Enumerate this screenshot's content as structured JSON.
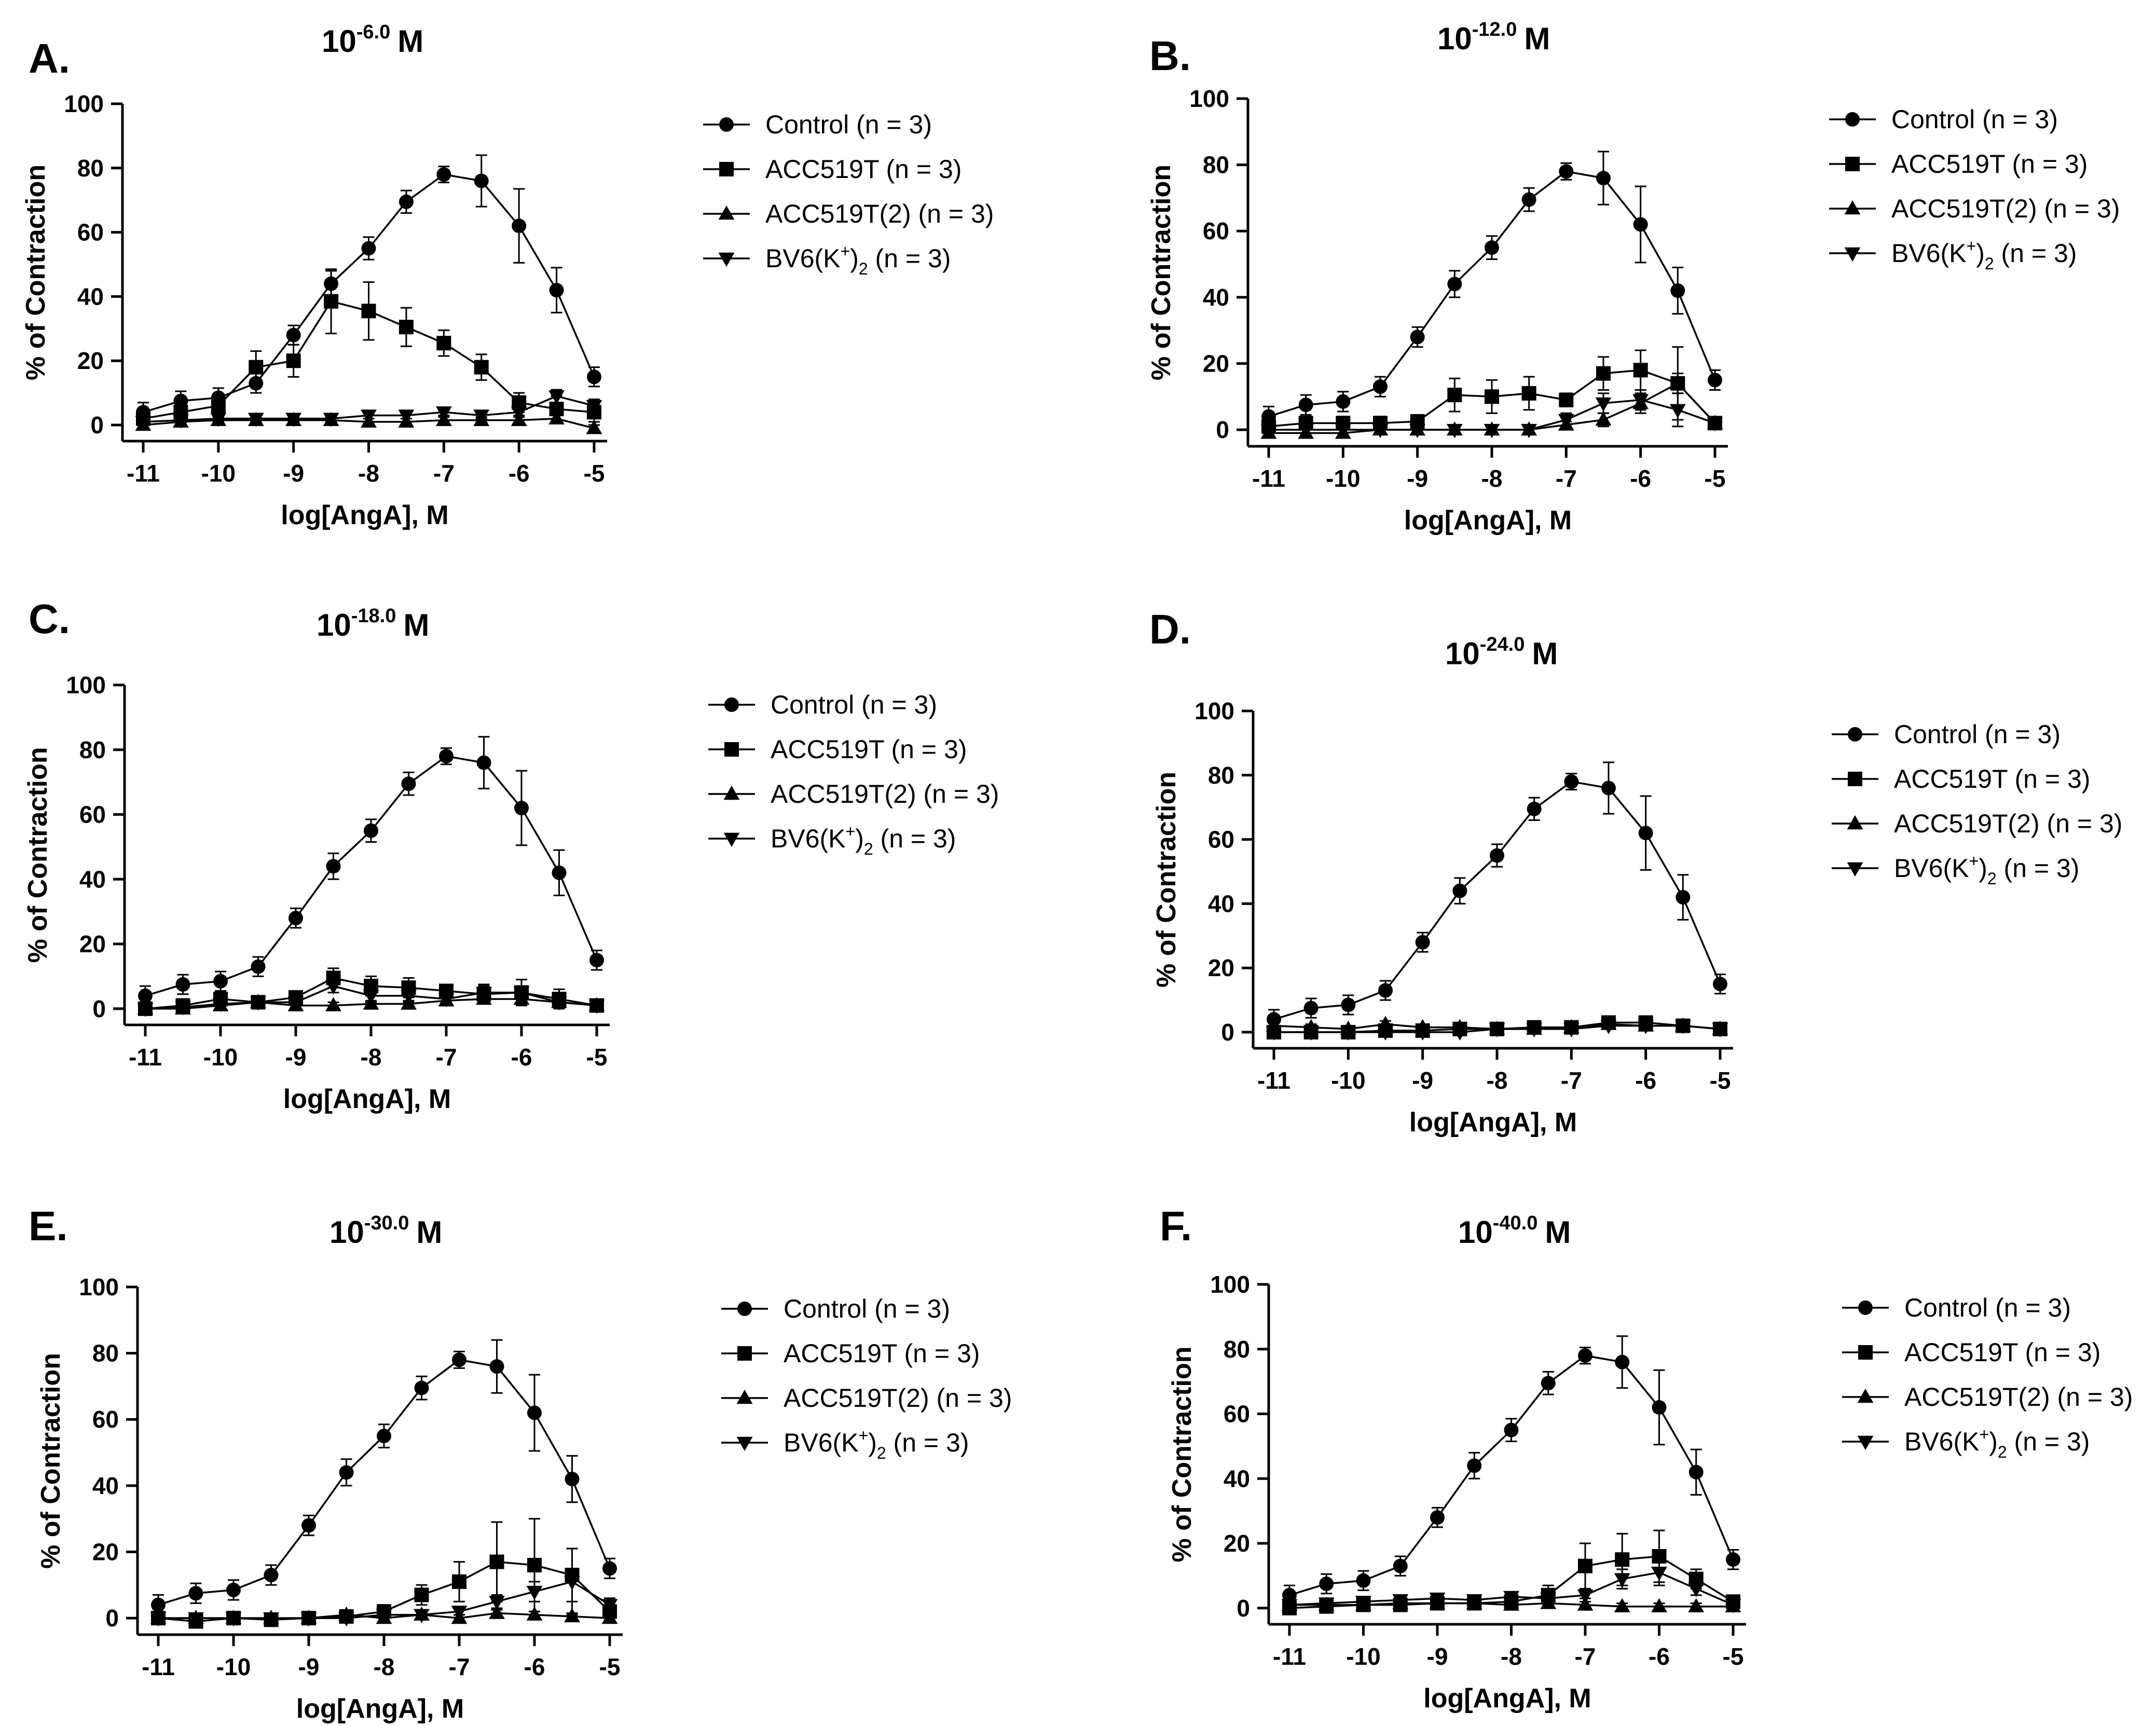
{
  "figure": {
    "charts": [
      {
        "letter": "A.",
        "title": "10",
        "exponent": "-6.0",
        "unit": "M"
      },
      {
        "letter": "B.",
        "title": "10",
        "exponent": "-12.0",
        "unit": "M"
      },
      {
        "letter": "C.",
        "title": "10",
        "exponent": "-18.0",
        "unit": "M"
      },
      {
        "letter": "D.",
        "title": "10",
        "exponent": "-24.0",
        "unit": "M"
      },
      {
        "letter": "E.",
        "title": "10",
        "exponent": "-30.0",
        "unit": "M"
      },
      {
        "letter": "F.",
        "title": "10",
        "exponent": "-40.0",
        "unit": "M"
      }
    ]
  },
  "chart_data": [
    {
      "type": "line",
      "panel": "A.",
      "title": "10^-6.0 M",
      "xlabel": "log[AngA], M",
      "ylabel": "% of Contraction",
      "xlim": [
        -11,
        -5
      ],
      "ylim": [
        -5,
        100
      ],
      "xticks": [
        -11,
        -10,
        -9,
        -8,
        -7,
        -6,
        -5
      ],
      "yticks": [
        0,
        20,
        40,
        60,
        80,
        100
      ],
      "x": [
        -11,
        -10.5,
        -10,
        -9.5,
        -9,
        -8.5,
        -8,
        -7.5,
        -7,
        -6.5,
        -6,
        -5.5,
        -5
      ],
      "legend_position": "right",
      "series": [
        {
          "name": "Control (n = 3)",
          "marker": "circle",
          "values": [
            4,
            7.5,
            8.5,
            13,
            28,
            44,
            55,
            69.5,
            78,
            76,
            62,
            42,
            15
          ],
          "errors": [
            3,
            3,
            3,
            3,
            3,
            4,
            3.5,
            3.5,
            2.5,
            8,
            11.5,
            7,
            3
          ]
        },
        {
          "name": "ACC519T (n = 3)",
          "marker": "square",
          "values": [
            2,
            4,
            6,
            18,
            20,
            38.5,
            35.5,
            30.5,
            25.5,
            18,
            7,
            5,
            4
          ],
          "errors": [
            2,
            3,
            3,
            5,
            5,
            10,
            9,
            6,
            4,
            4,
            3,
            4,
            3
          ]
        },
        {
          "name": "ACC519T(2) (n = 3)",
          "marker": "triangle-up",
          "values": [
            0,
            1,
            1.5,
            1.5,
            1.5,
            1.5,
            1,
            1,
            1.5,
            1.5,
            1.5,
            2,
            -1
          ],
          "errors": [
            1,
            1,
            1,
            1,
            1,
            1,
            1,
            1,
            1,
            1,
            1,
            1,
            1
          ]
        },
        {
          "name": "BV6(K+)2 (n = 3)",
          "marker": "triangle-down",
          "values": [
            1,
            1.5,
            2,
            2,
            2,
            2,
            3,
            3,
            4,
            3,
            4,
            9,
            6
          ],
          "errors": [
            1,
            1,
            1,
            1,
            1,
            1,
            1,
            1,
            1,
            1,
            1,
            2,
            2
          ]
        }
      ]
    },
    {
      "type": "line",
      "panel": "B.",
      "title": "10^-12.0 M",
      "xlabel": "log[AngA], M",
      "ylabel": "% of Contraction",
      "xlim": [
        -11,
        -5
      ],
      "ylim": [
        -5,
        100
      ],
      "xticks": [
        -11,
        -10,
        -9,
        -8,
        -7,
        -6,
        -5
      ],
      "yticks": [
        0,
        20,
        40,
        60,
        80,
        100
      ],
      "x": [
        -11,
        -10.5,
        -10,
        -9.5,
        -9,
        -8.5,
        -8,
        -7.5,
        -7,
        -6.5,
        -6,
        -5.5,
        -5
      ],
      "legend_position": "right",
      "series": [
        {
          "name": "Control (n = 3)",
          "marker": "circle",
          "values": [
            4,
            7.5,
            8.5,
            13,
            28,
            44,
            55,
            69.5,
            78,
            76,
            62,
            42,
            15
          ],
          "errors": [
            3,
            3,
            3,
            3,
            3,
            4,
            3.5,
            3.5,
            2.5,
            8,
            11.5,
            7,
            3
          ]
        },
        {
          "name": "ACC519T (n = 3)",
          "marker": "square",
          "values": [
            1,
            2,
            2,
            2,
            2.5,
            10.5,
            10,
            11,
            9,
            17,
            18,
            14,
            2
          ],
          "errors": [
            2,
            2,
            2,
            2,
            2,
            5,
            5,
            5,
            2,
            5,
            6,
            11,
            1
          ]
        },
        {
          "name": "ACC519T(2) (n = 3)",
          "marker": "triangle-up",
          "values": [
            -1,
            -1,
            -1,
            0,
            0,
            0,
            0,
            0,
            1.5,
            3,
            8,
            14,
            2
          ],
          "errors": [
            1,
            1,
            1,
            1,
            1,
            1,
            1,
            1,
            1,
            2,
            3,
            3,
            1
          ]
        },
        {
          "name": "BV6(K+)2 (n = 3)",
          "marker": "triangle-down",
          "values": [
            0,
            0,
            0,
            0,
            0,
            0,
            0,
            0,
            3,
            8,
            9,
            6,
            2
          ],
          "errors": [
            1,
            1,
            1,
            1,
            1,
            1,
            1,
            1,
            2,
            3,
            3,
            5,
            1
          ]
        }
      ]
    },
    {
      "type": "line",
      "panel": "C.",
      "title": "10^-18.0 M",
      "xlabel": "log[AngA], M",
      "ylabel": "% of Contraction",
      "xlim": [
        -11,
        -5
      ],
      "ylim": [
        -5,
        100
      ],
      "xticks": [
        -11,
        -10,
        -9,
        -8,
        -7,
        -6,
        -5
      ],
      "yticks": [
        0,
        20,
        40,
        60,
        80,
        100
      ],
      "x": [
        -11,
        -10.5,
        -10,
        -9.5,
        -9,
        -8.5,
        -8,
        -7.5,
        -7,
        -6.5,
        -6,
        -5.5,
        -5
      ],
      "legend_position": "right",
      "series": [
        {
          "name": "Control (n = 3)",
          "marker": "circle",
          "values": [
            4,
            7.5,
            8.5,
            13,
            28,
            44,
            55,
            69.5,
            78,
            76,
            62,
            42,
            15
          ],
          "errors": [
            3,
            3,
            3,
            3,
            3,
            4,
            3.5,
            3.5,
            2.5,
            8,
            11.5,
            7,
            3
          ]
        },
        {
          "name": "ACC519T (n = 3)",
          "marker": "square",
          "values": [
            0,
            1,
            3,
            2,
            3.5,
            9.5,
            7,
            6.5,
            5.5,
            4.5,
            5,
            3,
            1
          ],
          "errors": [
            1,
            1,
            2,
            1,
            2,
            3,
            3,
            3,
            2,
            3,
            4,
            3,
            1
          ]
        },
        {
          "name": "ACC519T(2) (n = 3)",
          "marker": "triangle-up",
          "values": [
            0,
            0,
            1,
            2,
            1,
            1,
            1.5,
            1.5,
            2.5,
            3,
            3,
            2,
            1
          ],
          "errors": [
            1,
            1,
            1,
            1,
            1,
            1,
            1,
            1,
            1,
            1,
            1,
            1,
            1
          ]
        },
        {
          "name": "BV6(K+)2 (n = 3)",
          "marker": "triangle-down",
          "values": [
            0,
            0.5,
            1.5,
            2,
            2,
            7,
            4,
            4,
            3,
            5,
            5,
            2,
            1
          ],
          "errors": [
            1,
            1,
            1,
            1,
            1,
            2,
            2,
            2,
            1,
            2,
            2,
            1,
            1
          ]
        }
      ]
    },
    {
      "type": "line",
      "panel": "D.",
      "title": "10^-24.0 M",
      "xlabel": "log[AngA], M",
      "ylabel": "% of Contraction",
      "xlim": [
        -11,
        -5
      ],
      "ylim": [
        -5,
        100
      ],
      "xticks": [
        -11,
        -10,
        -9,
        -8,
        -7,
        -6,
        -5
      ],
      "yticks": [
        0,
        20,
        40,
        60,
        80,
        100
      ],
      "x": [
        -11,
        -10.5,
        -10,
        -9.5,
        -9,
        -8.5,
        -8,
        -7.5,
        -7,
        -6.5,
        -6,
        -5.5,
        -5
      ],
      "legend_position": "right",
      "series": [
        {
          "name": "Control (n = 3)",
          "marker": "circle",
          "values": [
            4,
            7.5,
            8.5,
            13,
            28,
            44,
            55,
            69.5,
            78,
            76,
            62,
            42,
            15
          ],
          "errors": [
            3,
            3,
            3,
            3,
            3,
            4,
            3.5,
            3.5,
            2.5,
            8,
            11.5,
            7,
            3
          ]
        },
        {
          "name": "ACC519T (n = 3)",
          "marker": "square",
          "values": [
            0,
            0,
            0,
            0.5,
            0.5,
            1,
            1,
            1.5,
            1.5,
            3,
            3,
            2,
            1
          ],
          "errors": [
            1,
            1,
            1,
            1,
            1,
            1,
            1,
            1,
            1,
            1,
            1,
            1,
            1
          ]
        },
        {
          "name": "ACC519T(2) (n = 3)",
          "marker": "triangle-up",
          "values": [
            2,
            1.5,
            1,
            2.5,
            1.5,
            1.5,
            1,
            1,
            1.5,
            2.5,
            2,
            2,
            1
          ],
          "errors": [
            1,
            1,
            1,
            1,
            1,
            1,
            1,
            1,
            1,
            1,
            1,
            1,
            1
          ]
        },
        {
          "name": "BV6(K+)2 (n = 3)",
          "marker": "triangle-down",
          "values": [
            0,
            0,
            0,
            0,
            0,
            0,
            1,
            1,
            1,
            2,
            2,
            2,
            1
          ],
          "errors": [
            1,
            1,
            1,
            1,
            1,
            1,
            1,
            1,
            1,
            1,
            1,
            1,
            1
          ]
        }
      ]
    },
    {
      "type": "line",
      "panel": "E.",
      "title": "10^-30.0 M",
      "xlabel": "log[AngA], M",
      "ylabel": "% of Contraction",
      "xlim": [
        -11,
        -5
      ],
      "ylim": [
        -5,
        100
      ],
      "xticks": [
        -11,
        -10,
        -9,
        -8,
        -7,
        -6,
        -5
      ],
      "yticks": [
        0,
        20,
        40,
        60,
        80,
        100
      ],
      "x": [
        -11,
        -10.5,
        -10,
        -9.5,
        -9,
        -8.5,
        -8,
        -7.5,
        -7,
        -6.5,
        -6,
        -5.5,
        -5
      ],
      "legend_position": "right",
      "series": [
        {
          "name": "Control (n = 3)",
          "marker": "circle",
          "values": [
            4,
            7.5,
            8.5,
            13,
            28,
            44,
            55,
            69.5,
            78,
            76,
            62,
            42,
            15
          ],
          "errors": [
            3,
            3,
            3,
            3,
            3,
            4,
            3.5,
            3.5,
            2.5,
            8,
            11.5,
            7,
            3
          ]
        },
        {
          "name": "ACC519T (n = 3)",
          "marker": "square",
          "values": [
            0,
            -1,
            0,
            -0.5,
            0,
            0.5,
            2,
            7,
            11,
            17,
            16,
            13,
            2
          ],
          "errors": [
            1,
            1,
            1,
            1,
            1,
            1,
            2,
            3,
            6,
            12,
            14,
            8,
            1
          ]
        },
        {
          "name": "ACC519T(2) (n = 3)",
          "marker": "triangle-up",
          "values": [
            0,
            0,
            0,
            0,
            0,
            1,
            0,
            1,
            0,
            1.5,
            1,
            0.5,
            0
          ],
          "errors": [
            1,
            1,
            1,
            1,
            1,
            1,
            1,
            1,
            1,
            1,
            1,
            1,
            1
          ]
        },
        {
          "name": "BV6(K+)2 (n = 3)",
          "marker": "triangle-down",
          "values": [
            0,
            0,
            0,
            0,
            0,
            0,
            1,
            1,
            2,
            5,
            8,
            11,
            4
          ],
          "errors": [
            1,
            1,
            1,
            1,
            1,
            1,
            1,
            1,
            1,
            2,
            3,
            10,
            2
          ]
        }
      ]
    },
    {
      "type": "line",
      "panel": "F.",
      "title": "10^-40.0 M",
      "xlabel": "log[AngA], M",
      "ylabel": "% of Contraction",
      "xlim": [
        -11,
        -5
      ],
      "ylim": [
        -5,
        100
      ],
      "xticks": [
        -11,
        -10,
        -9,
        -8,
        -7,
        -6,
        -5
      ],
      "yticks": [
        0,
        20,
        40,
        60,
        80,
        100
      ],
      "x": [
        -11,
        -10.5,
        -10,
        -9.5,
        -9,
        -8.5,
        -8,
        -7.5,
        -7,
        -6.5,
        -6,
        -5.5,
        -5
      ],
      "legend_position": "right",
      "series": [
        {
          "name": "Control (n = 3)",
          "marker": "circle",
          "values": [
            4,
            7.5,
            8.5,
            13,
            28,
            44,
            55,
            69.5,
            78,
            76,
            62,
            42,
            15
          ],
          "errors": [
            3,
            3,
            3,
            3,
            3,
            4,
            3.5,
            3.5,
            2.5,
            8,
            11.5,
            7,
            3
          ]
        },
        {
          "name": "ACC519T (n = 3)",
          "marker": "square",
          "values": [
            0,
            0.5,
            1,
            1,
            1.5,
            1.5,
            2,
            4,
            13,
            15,
            16,
            9,
            2
          ],
          "errors": [
            1,
            1,
            1,
            1,
            1,
            1,
            1,
            3,
            7,
            8,
            8,
            3,
            1
          ]
        },
        {
          "name": "ACC519T(2) (n = 3)",
          "marker": "triangle-up",
          "values": [
            1,
            1,
            1,
            1.5,
            1.5,
            1.5,
            1,
            1.5,
            1,
            0.5,
            0.5,
            0.5,
            0.5
          ],
          "errors": [
            1,
            1,
            1,
            1,
            1,
            1,
            1,
            1,
            1,
            1,
            1,
            1,
            1
          ]
        },
        {
          "name": "BV6(K+)2 (n = 3)",
          "marker": "triangle-down",
          "values": [
            1,
            1.5,
            2,
            2.5,
            3,
            2.5,
            3.5,
            3,
            4,
            9,
            11,
            6,
            1
          ],
          "errors": [
            1,
            1,
            1,
            1,
            1,
            1,
            1,
            1,
            1,
            3,
            4,
            2,
            1
          ]
        }
      ]
    }
  ]
}
